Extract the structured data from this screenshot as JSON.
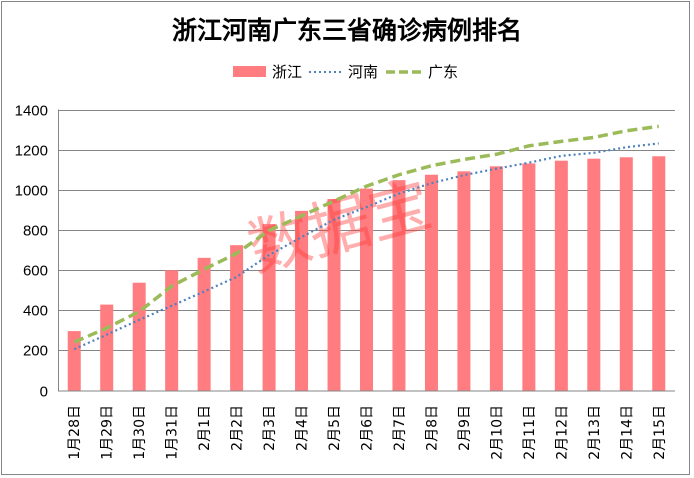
{
  "chart_data": {
    "type": "bar",
    "title": "浙江河南广东三省确诊病例排名",
    "xlabel": "",
    "ylabel": "",
    "ylim": [
      0,
      1400
    ],
    "yticks": [
      0,
      200,
      400,
      600,
      800,
      1000,
      1200,
      1400
    ],
    "grid": true,
    "legend_position": "top-center",
    "categories": [
      "1月28日",
      "1月29日",
      "1月30日",
      "1月31日",
      "2月1日",
      "2月2日",
      "2月3日",
      "2月4日",
      "2月5日",
      "2月6日",
      "2月7日",
      "2月8日",
      "2月9日",
      "2月10日",
      "2月11日",
      "2月12日",
      "2月13日",
      "2月14日",
      "2月15日"
    ],
    "series": [
      {
        "name": "浙江",
        "kind": "bar",
        "color": "#FF7C80",
        "values": [
          296,
          428,
          537,
          599,
          661,
          724,
          829,
          895,
          954,
          1006,
          1048,
          1075,
          1092,
          1117,
          1131,
          1145,
          1155,
          1162,
          1167
        ]
      },
      {
        "name": "河南",
        "kind": "line-dotted",
        "color": "#4F81BD",
        "values": [
          206,
          278,
          352,
          422,
          493,
          566,
          675,
          764,
          851,
          914,
          981,
          1033,
          1073,
          1105,
          1135,
          1169,
          1184,
          1212,
          1231
        ]
      },
      {
        "name": "广东",
        "kind": "line-dashed",
        "color": "#9BBB59",
        "values": [
          241,
          311,
          393,
          520,
          604,
          683,
          797,
          870,
          944,
          1018,
          1075,
          1120,
          1151,
          1177,
          1219,
          1241,
          1261,
          1294,
          1316
        ]
      }
    ],
    "watermark": "数据宝"
  },
  "colors": {
    "grid": "#868686",
    "axis": "#868686"
  }
}
